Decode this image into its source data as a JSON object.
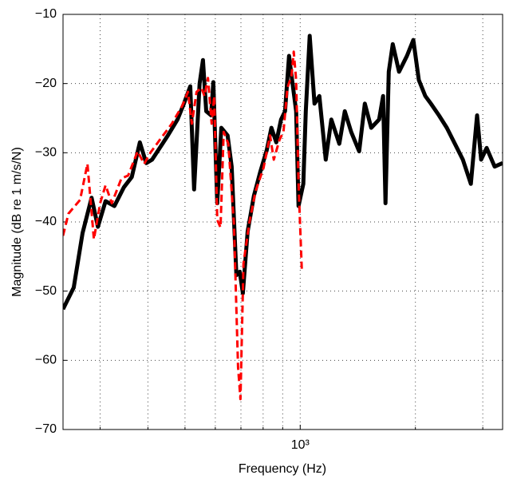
{
  "chart_data": {
    "type": "line",
    "xlabel": "Frequency (Hz)",
    "ylabel": "Magnitude (dB re 1 m/s/N)",
    "xscale": "log",
    "xlim": [
      240,
      3380
    ],
    "ylim": [
      -70,
      -10
    ],
    "xticks": [
      {
        "value": 1000,
        "label": "10³"
      }
    ],
    "xminor_ticks": [
      300,
      400,
      500,
      600,
      700,
      800,
      900,
      2000,
      3000
    ],
    "yticks": [
      {
        "value": -70,
        "label": "−70"
      },
      {
        "value": -60,
        "label": "−60"
      },
      {
        "value": -50,
        "label": "−50"
      },
      {
        "value": -40,
        "label": "−40"
      },
      {
        "value": -30,
        "label": "−30"
      },
      {
        "value": -20,
        "label": "−20"
      },
      {
        "value": -10,
        "label": "−10"
      }
    ],
    "grid": true,
    "series": [
      {
        "color": "#000000",
        "style": "solid",
        "x": [
          240,
          256,
          270,
          285,
          296,
          310,
          327,
          346,
          363,
          381,
          396,
          410,
          451,
          478,
          496,
          516,
          528,
          546,
          557,
          568,
          585,
          593,
          607,
          622,
          646,
          662,
          681,
          695,
          708,
          729,
          757,
          787,
          818,
          841,
          866,
          891,
          913,
          935,
          958,
          976,
          990,
          1019,
          1034,
          1059,
          1090,
          1122,
          1166,
          1206,
          1265,
          1308,
          1359,
          1426,
          1475,
          1533,
          1608,
          1647,
          1671,
          1704,
          1745,
          1813,
          1901,
          1975,
          2042,
          2123,
          2195,
          2304,
          2417,
          2536,
          2661,
          2792,
          2899,
          2970,
          3071,
          3222,
          3380
        ],
        "values": [
          -52.6,
          -49.5,
          -41.6,
          -36.5,
          -40.7,
          -37,
          -37.7,
          -35,
          -33.5,
          -28.5,
          -31.5,
          -31,
          -27.5,
          -25.2,
          -23,
          -20.4,
          -35.3,
          -20,
          -16.6,
          -24,
          -24.6,
          -19.8,
          -37.3,
          -26.4,
          -27.5,
          -32,
          -47.7,
          -47.2,
          -50.3,
          -41.4,
          -36.2,
          -32.7,
          -29.6,
          -26.4,
          -28.5,
          -25.2,
          -24,
          -16,
          -20.6,
          -24,
          -37.7,
          -34.5,
          -24,
          -13.1,
          -22.9,
          -21.8,
          -31,
          -25.2,
          -28.7,
          -24,
          -27,
          -29.8,
          -22.9,
          -26.4,
          -25.2,
          -21.8,
          -37.3,
          -18.3,
          -14.3,
          -18.3,
          -16,
          -13.7,
          -19.5,
          -21.8,
          -22.9,
          -24.6,
          -26.4,
          -28.7,
          -31,
          -34.5,
          -24.6,
          -31,
          -29.3,
          -32,
          -31.5
        ]
      },
      {
        "color": "#ff0000",
        "style": "dashed",
        "x": [
          240,
          248,
          266,
          278,
          289,
          300,
          310,
          322,
          341,
          355,
          376,
          391,
          406,
          430,
          462,
          492,
          509,
          521,
          536,
          552,
          562,
          574,
          587,
          596,
          607,
          619,
          631,
          649,
          671,
          688,
          698,
          711,
          736,
          764,
          802,
          834,
          853,
          883,
          904,
          926,
          949,
          962,
          976,
          990,
          1010
        ],
        "values": [
          -42,
          -38.8,
          -36.8,
          -31.6,
          -42.5,
          -37.3,
          -34.7,
          -37.3,
          -33.7,
          -33.3,
          -29.8,
          -31.6,
          -30,
          -28.1,
          -25.8,
          -23.2,
          -21.2,
          -25.8,
          -21.2,
          -20.6,
          -21.8,
          -19.2,
          -25.8,
          -21.8,
          -39.7,
          -40.8,
          -27,
          -28.7,
          -40.2,
          -61,
          -65.6,
          -46,
          -40.2,
          -35.6,
          -32.2,
          -27.5,
          -31,
          -28.1,
          -27,
          -20.6,
          -18.9,
          -15.4,
          -19.5,
          -34.5,
          -47.2
        ]
      }
    ]
  }
}
